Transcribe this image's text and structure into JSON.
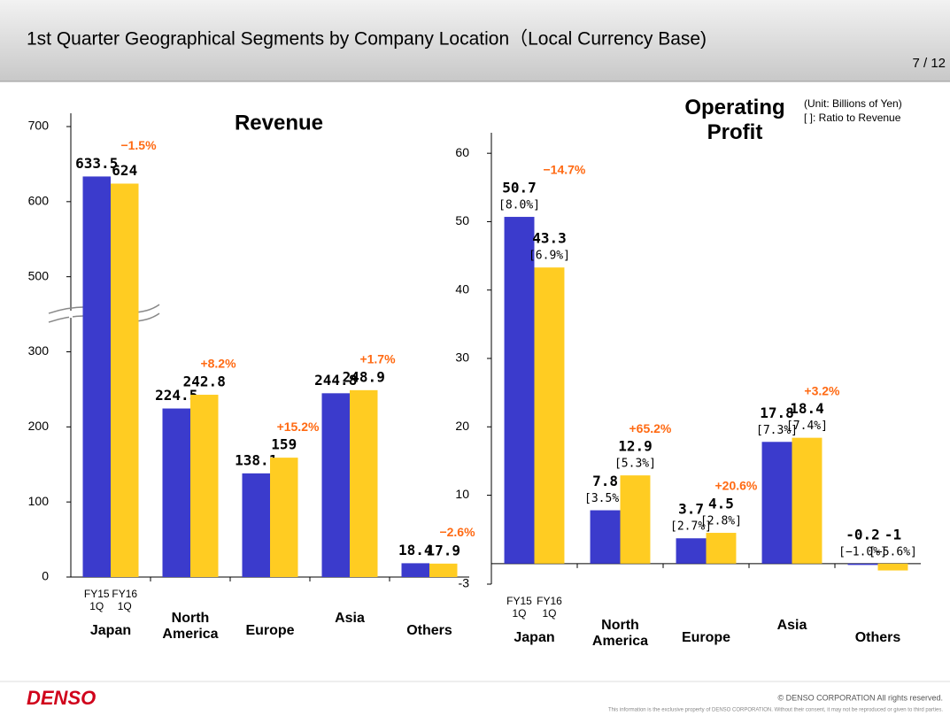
{
  "header": {
    "title": "1st Quarter Geographical Segments by Company Location（Local Currency Base)",
    "page": "7 / 12"
  },
  "notes": {
    "unit": "(Unit: Billions of Yen)",
    "ratio": "[ ]: Ratio to Revenue"
  },
  "chart_data": [
    {
      "type": "bar",
      "title": "Revenue",
      "categories": [
        "Japan",
        "North America",
        "Europe",
        "Asia",
        "Others"
      ],
      "series": [
        {
          "name": "FY15 1Q",
          "color": "#3b3bcc",
          "values": [
            633.5,
            224.5,
            138.1,
            244.8,
            18.4
          ]
        },
        {
          "name": "FY16 1Q",
          "color": "#ffcc22",
          "values": [
            624.0,
            242.8,
            159.0,
            248.9,
            17.9
          ]
        }
      ],
      "changes": [
        "−1.5%",
        "+8.2%",
        "+15.2%",
        "+1.7%",
        "−2.6%"
      ],
      "ylim": [
        0,
        700
      ],
      "yticks": [
        0,
        100,
        200,
        300,
        500,
        600,
        700
      ],
      "axis_break": true
    },
    {
      "type": "bar",
      "title": "Operating Profit",
      "categories": [
        "Japan",
        "North America",
        "Europe",
        "Asia",
        "Others"
      ],
      "series": [
        {
          "name": "FY15 1Q",
          "color": "#3b3bcc",
          "values": [
            50.7,
            7.8,
            3.7,
            17.8,
            -0.2
          ],
          "ratio_labels": [
            "[8.0%]",
            "[3.5%]",
            "[2.7%]",
            "[7.3%]",
            "[−1.0%]"
          ]
        },
        {
          "name": "FY16 1Q",
          "color": "#ffcc22",
          "values": [
            43.3,
            12.9,
            4.5,
            18.4,
            -1.0
          ],
          "ratio_labels": [
            "[6.9%]",
            "[5.3%]",
            "[2.8%]",
            "[7.4%]",
            "[−5.6%]"
          ]
        }
      ],
      "changes": [
        "−14.7%",
        "+65.2%",
        "+20.6%",
        "+3.2%"
      ],
      "ylim": [
        -3,
        63
      ],
      "yticks": [
        -3,
        10,
        20,
        30,
        40,
        50,
        60
      ],
      "axis_break": false
    }
  ],
  "footer": {
    "logo": "DENSO",
    "copyright": "© DENSO CORPORATION  All rights reserved.",
    "disclaimer": "This information is the exclusive property of DENSO CORPORATION.  Without their consent, it may not be reproduced or given to third parties."
  }
}
